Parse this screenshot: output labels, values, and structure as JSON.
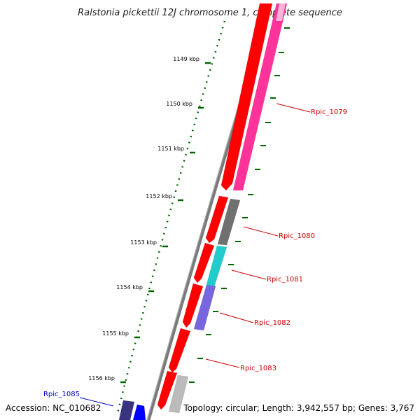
{
  "title": "Ralstonia pickettii 12J chromosome 1, complete sequence",
  "footer": {
    "accession": "Accession: NC_010682",
    "topology": "Topology: circular; Length: 3,942,557 bp; Genes: 3,767"
  },
  "ruler": {
    "ticks": [
      {
        "kbp": 1149,
        "label": "1149 kbp"
      },
      {
        "kbp": 1150,
        "label": "1150 kbp"
      },
      {
        "kbp": 1151,
        "label": "1151 kbp"
      },
      {
        "kbp": 1152,
        "label": "1152 kbp"
      },
      {
        "kbp": 1153,
        "label": "1153 kbp"
      },
      {
        "kbp": 1154,
        "label": "1154 kbp"
      },
      {
        "kbp": 1155,
        "label": "1155 kbp"
      },
      {
        "kbp": 1156,
        "label": "1156 kbp"
      }
    ]
  },
  "genes": [
    {
      "name": "Rpic_1079",
      "color": "#cc0000"
    },
    {
      "name": "Rpic_1080",
      "color": "#cc0000"
    },
    {
      "name": "Rpic_1081",
      "color": "#cc0000"
    },
    {
      "name": "Rpic_1082",
      "color": "#cc0000"
    },
    {
      "name": "Rpic_1083",
      "color": "#cc0000"
    },
    {
      "name": "Rpic_1085",
      "color": "#0000cc"
    }
  ],
  "colors": {
    "cds": "#ff0000",
    "cog_1079": "#ff3399",
    "cog_1080": "#707070",
    "cog_1081": "#22cccc",
    "cog_1082": "#7766dd",
    "cog_1083": "#bbbbbb",
    "cog_1085": "#3a3480",
    "cds_reverse": "#0000ff",
    "backbone": "#808080",
    "ruler": "#006600"
  }
}
